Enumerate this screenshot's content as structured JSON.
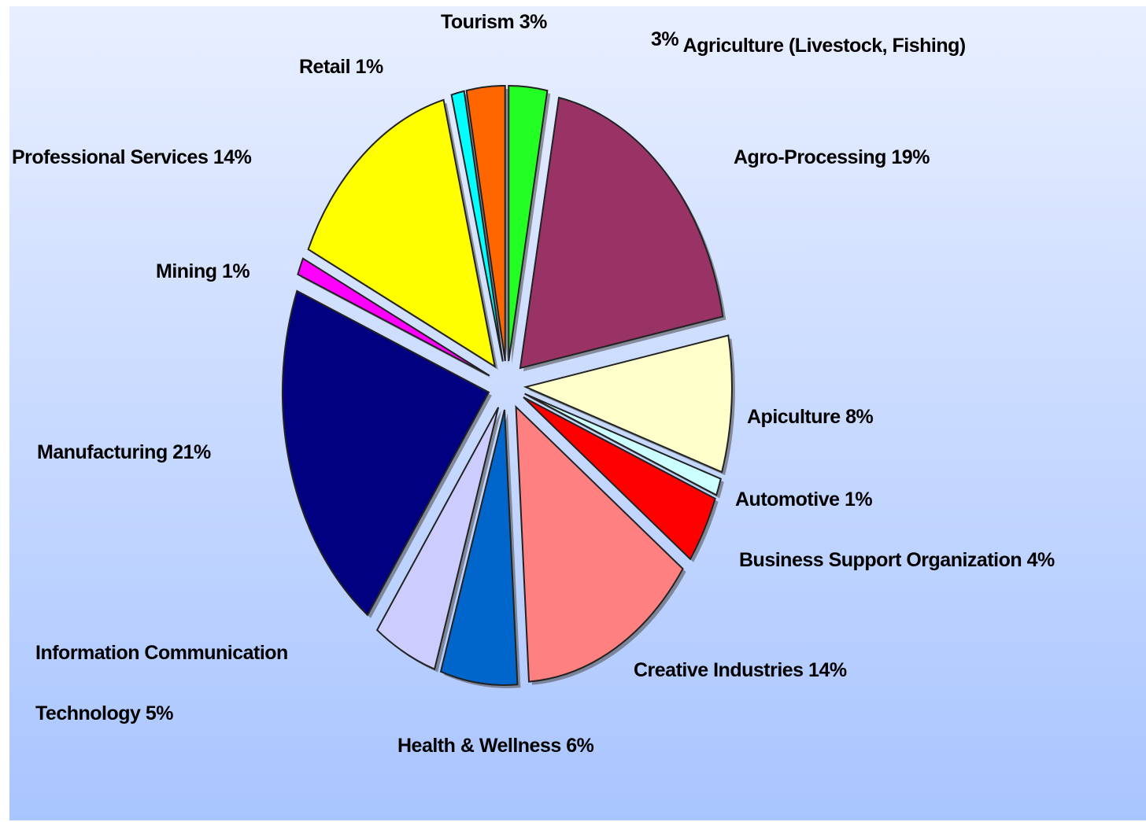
{
  "chart_data": {
    "type": "pie",
    "categories": [
      "Agriculture (Livestock, Fishing)",
      "Agro-Processing",
      "Apiculture",
      "Automotive",
      "Business Support Organization",
      "Creative Industries",
      "Health & Wellness",
      "Information Communication Technology",
      "Manufacturing",
      "Mining",
      "Professional Services",
      "Retail",
      "Tourism"
    ],
    "values": [
      3,
      19,
      8,
      1,
      4,
      14,
      6,
      5,
      21,
      1,
      14,
      1,
      3
    ],
    "value_labels": [
      "3%",
      "19%",
      "8%",
      "1%",
      "4%",
      "14%",
      "6%",
      "5%",
      "21%",
      "1%",
      "14%",
      "1%",
      "3%"
    ],
    "colors": [
      "#22ff22",
      "#993366",
      "#ffffcc",
      "#ccffff",
      "#ff0000",
      "#ff8080",
      "#0066cc",
      "#ccccff",
      "#000080",
      "#ff00ff",
      "#ffff00",
      "#00ffff",
      "#ff6600"
    ]
  }
}
